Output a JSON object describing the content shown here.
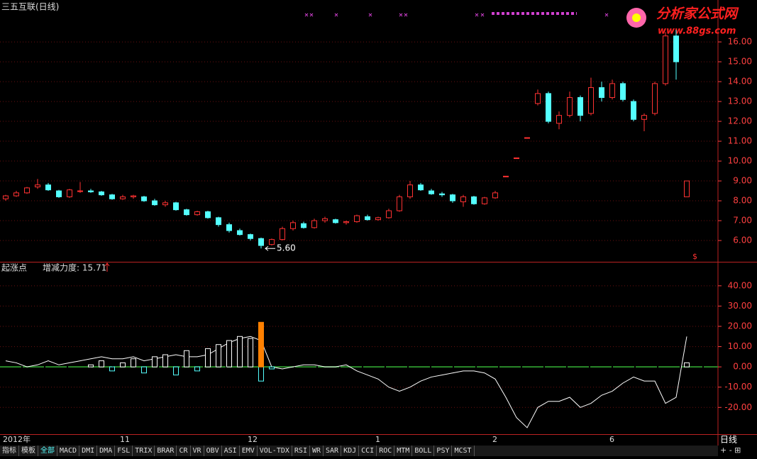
{
  "title": "三五互联(日线)",
  "logo": {
    "name": "分析家公式网",
    "url": "www.88gs.com"
  },
  "period": "日线",
  "tabs": [
    "指标",
    "模板",
    "全部",
    "MACD",
    "DMI",
    "DMA",
    "FSL",
    "TRIX",
    "BRAR",
    "CR",
    "VR",
    "OBV",
    "ASI",
    "EMV",
    "VOL-TDX",
    "RSI",
    "WR",
    "SAR",
    "KDJ",
    "CCI",
    "ROC",
    "MTM",
    "BOLL",
    "PSY",
    "MCST"
  ],
  "chart_data": [
    {
      "type": "candlestick",
      "up_color": "#ff3232",
      "down_color": "#54ffff",
      "low_label": "5.60",
      "marker": "$",
      "categories": [
        "2012年",
        null,
        null,
        null,
        null,
        null,
        null,
        null,
        null,
        null,
        null,
        "11",
        null,
        null,
        null,
        null,
        null,
        null,
        null,
        null,
        null,
        null,
        null,
        "12",
        null,
        null,
        null,
        null,
        null,
        null,
        null,
        null,
        null,
        null,
        null,
        "1",
        null,
        null,
        null,
        null,
        null,
        null,
        null,
        null,
        null,
        null,
        "2",
        null,
        null,
        null,
        null,
        null,
        null,
        null,
        null,
        null,
        null,
        "6",
        null,
        null,
        null,
        null,
        null,
        null,
        null
      ],
      "open": [
        8.1,
        8.25,
        8.4,
        8.7,
        8.8,
        8.5,
        8.2,
        8.5,
        8.5,
        8.45,
        8.3,
        8.1,
        8.2,
        8.2,
        8.0,
        7.8,
        7.9,
        7.55,
        7.3,
        7.45,
        7.15,
        6.8,
        6.5,
        6.3,
        6.1,
        5.8,
        6.05,
        6.6,
        6.85,
        6.65,
        7.0,
        7.05,
        6.9,
        6.95,
        7.2,
        7.05,
        7.15,
        7.5,
        8.2,
        8.8,
        8.5,
        8.35,
        8.3,
        7.95,
        8.2,
        7.85,
        8.15,
        9.24,
        10.16,
        11.18,
        12.9,
        13.4,
        11.9,
        12.3,
        13.2,
        12.4,
        13.7,
        13.2,
        13.9,
        13.0,
        12.1,
        12.4,
        13.9,
        16.3,
        8.2
      ],
      "high": [
        8.3,
        8.5,
        8.7,
        9.1,
        8.9,
        8.55,
        8.6,
        8.95,
        8.6,
        8.5,
        8.35,
        8.3,
        8.3,
        8.25,
        8.1,
        8.0,
        7.95,
        7.6,
        7.5,
        7.5,
        7.2,
        6.9,
        6.6,
        6.35,
        6.15,
        6.1,
        6.7,
        7.0,
        6.95,
        7.1,
        7.2,
        7.1,
        7.0,
        7.3,
        7.3,
        7.2,
        7.6,
        8.3,
        9.0,
        8.9,
        8.6,
        8.45,
        8.35,
        8.3,
        8.25,
        8.2,
        8.5,
        9.24,
        10.16,
        11.18,
        13.6,
        13.5,
        12.5,
        13.5,
        13.3,
        14.2,
        14.0,
        14.1,
        14.0,
        13.1,
        12.4,
        14.0,
        16.5,
        16.6,
        9.0
      ],
      "low": [
        8.0,
        8.2,
        8.35,
        8.6,
        8.5,
        8.15,
        8.15,
        8.4,
        8.4,
        8.25,
        8.05,
        8.05,
        8.1,
        7.95,
        7.75,
        7.7,
        7.5,
        7.25,
        7.25,
        7.1,
        6.7,
        6.4,
        6.25,
        6.0,
        5.6,
        5.75,
        6.0,
        6.5,
        6.6,
        6.6,
        6.9,
        6.85,
        6.8,
        6.9,
        7.0,
        7.0,
        7.1,
        7.45,
        8.1,
        8.5,
        8.3,
        8.2,
        7.9,
        7.7,
        7.8,
        7.8,
        8.1,
        9.24,
        10.16,
        11.18,
        12.8,
        11.9,
        11.6,
        12.2,
        12.0,
        12.3,
        13.0,
        13.1,
        13.0,
        12.0,
        11.5,
        12.3,
        13.8,
        14.1,
        8.2
      ],
      "close": [
        8.25,
        8.4,
        8.65,
        8.8,
        8.55,
        8.2,
        8.55,
        8.5,
        8.45,
        8.3,
        8.1,
        8.2,
        8.25,
        8.0,
        7.8,
        7.9,
        7.55,
        7.3,
        7.45,
        7.15,
        6.8,
        6.5,
        6.3,
        6.1,
        5.75,
        6.05,
        6.6,
        6.9,
        6.65,
        7.0,
        7.1,
        6.9,
        6.95,
        7.25,
        7.05,
        7.15,
        7.5,
        8.2,
        8.8,
        8.55,
        8.35,
        8.3,
        8.0,
        8.2,
        7.85,
        8.15,
        8.4,
        9.24,
        10.16,
        11.18,
        13.4,
        12.0,
        12.3,
        13.2,
        12.3,
        13.7,
        13.2,
        13.9,
        13.1,
        12.1,
        12.3,
        13.9,
        16.3,
        15.0,
        9.0
      ],
      "ylim": [
        4.93,
        18.11
      ],
      "yticks": [
        {
          "value": 6,
          "label": "6.00"
        },
        {
          "value": 7,
          "label": "7.00"
        },
        {
          "value": 8,
          "label": "8.00"
        },
        {
          "value": 9,
          "label": "9.00"
        },
        {
          "value": 10,
          "label": "10.00"
        },
        {
          "value": 11,
          "label": "11.00"
        },
        {
          "value": 12,
          "label": "12.00"
        },
        {
          "value": 13,
          "label": "13.00"
        },
        {
          "value": 14,
          "label": "14.00"
        },
        {
          "value": 15,
          "label": "15.00"
        },
        {
          "value": 16,
          "label": "16.00"
        }
      ],
      "grid": true
    },
    {
      "type": "indicator",
      "title": "起涨点",
      "label": "增减力度: 15.71",
      "series": [
        {
          "style": "line",
          "color": "#ffffff",
          "values": [
            3,
            2,
            0,
            1,
            3,
            1,
            2,
            3,
            4,
            5,
            4,
            4,
            5,
            3,
            4,
            5,
            6,
            5,
            5,
            6,
            9,
            12,
            14,
            15,
            13,
            0,
            -1,
            0,
            1,
            1,
            0,
            0,
            1,
            -2,
            -4,
            -6,
            -10,
            -12,
            -10,
            -7,
            -5,
            -4,
            -3,
            -2,
            -2,
            -3,
            -6,
            -15,
            -25,
            -30,
            -20,
            -17,
            -17,
            -15,
            -20,
            -18,
            -14,
            -12,
            -8,
            -5,
            -7,
            -7,
            -18,
            -15,
            15
          ]
        },
        {
          "style": "bar",
          "color": "#ffffff",
          "negative_color": "#54ffff",
          "values": [
            0,
            0,
            0,
            0,
            0,
            0,
            0,
            0,
            1,
            3,
            -2,
            2,
            4,
            -3,
            5,
            6,
            -4,
            8,
            -2,
            9,
            11,
            13,
            15,
            14,
            -7,
            -1,
            0,
            0,
            0,
            0,
            0,
            0,
            0,
            0,
            0,
            0,
            0,
            0,
            0,
            0,
            0,
            0,
            0,
            0,
            0,
            0,
            0,
            0,
            0,
            0,
            0,
            0,
            0,
            0,
            0,
            0,
            0,
            0,
            0,
            0,
            0,
            0,
            0,
            0,
            2
          ]
        },
        {
          "style": "bar",
          "color": "#ff8000",
          "values": [
            null,
            null,
            null,
            null,
            null,
            null,
            null,
            null,
            null,
            null,
            null,
            null,
            null,
            null,
            null,
            null,
            null,
            null,
            null,
            null,
            null,
            null,
            null,
            null,
            22,
            null,
            null,
            null,
            null,
            null,
            null,
            null,
            null,
            null,
            null,
            null,
            null,
            null,
            null,
            null,
            null,
            null,
            null,
            null,
            null,
            null,
            null,
            null,
            null,
            null,
            null,
            null,
            null,
            null,
            null,
            null,
            null,
            null,
            null,
            null,
            null,
            null,
            null,
            null,
            null
          ]
        }
      ],
      "ylim": [
        -33.2,
        51.5
      ],
      "yticks": [
        {
          "value": -20,
          "label": "-20.00"
        },
        {
          "value": -10,
          "label": "-10.00"
        },
        {
          "value": 0,
          "label": "0.00"
        },
        {
          "value": 10,
          "label": "10.00"
        },
        {
          "value": 20,
          "label": "20.00"
        },
        {
          "value": 30,
          "label": "30.00"
        },
        {
          "value": 40,
          "label": "40.00"
        }
      ],
      "grid": true
    }
  ]
}
